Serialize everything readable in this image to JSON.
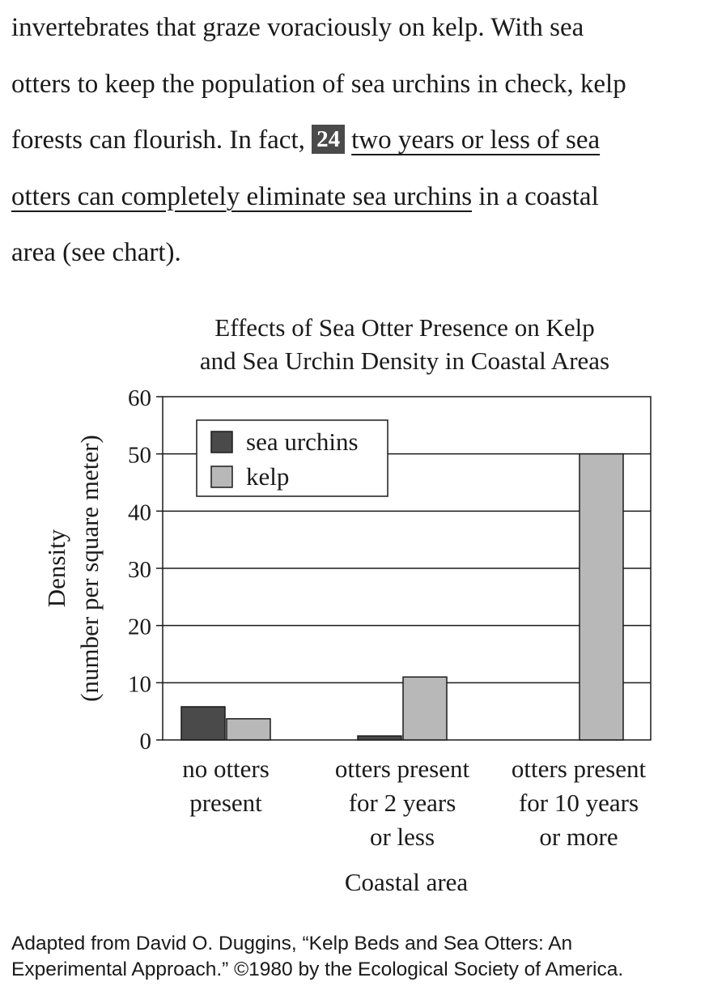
{
  "passage": {
    "line1": "invertebrates that graze voraciously on kelp. With sea",
    "line2": "otters to keep the population of sea urchins in check, kelp",
    "line3_lead": "forests can flourish. In fact,",
    "question_number": "24",
    "line3_underlined": "two years or less of sea",
    "line4_underlined": "otters can completely eliminate sea urchins",
    "line4_tail": " in a coastal",
    "line5": "area (see chart)."
  },
  "chart_data": {
    "type": "bar",
    "title_lines": [
      "Effects of Sea Otter Presence on Kelp",
      "and Sea Urchin Density in Coastal Areas"
    ],
    "ylabel_lines": [
      "Density",
      "(number per square meter)"
    ],
    "xlabel": "Coastal area",
    "categories": [
      [
        "no otters",
        "present"
      ],
      [
        "otters present",
        "for 2 years",
        "or less"
      ],
      [
        "otters present",
        "for 10 years",
        "or more"
      ]
    ],
    "series": [
      {
        "name": "sea urchins",
        "color": "#4a4a4a",
        "values": [
          5.8,
          0.7,
          0
        ]
      },
      {
        "name": "kelp",
        "color": "#b8b8b8",
        "values": [
          3.7,
          11,
          50
        ]
      }
    ],
    "ylim": [
      0,
      60
    ],
    "yticks": [
      "0",
      "10",
      "20",
      "30",
      "40",
      "50",
      "60"
    ],
    "grid": true,
    "legend": "top-left"
  },
  "credit": {
    "line1": "Adapted from David O. Duggins, “Kelp Beds and Sea Otters: An",
    "line2": "Experimental Approach.” ©1980 by the Ecological Society of America."
  }
}
